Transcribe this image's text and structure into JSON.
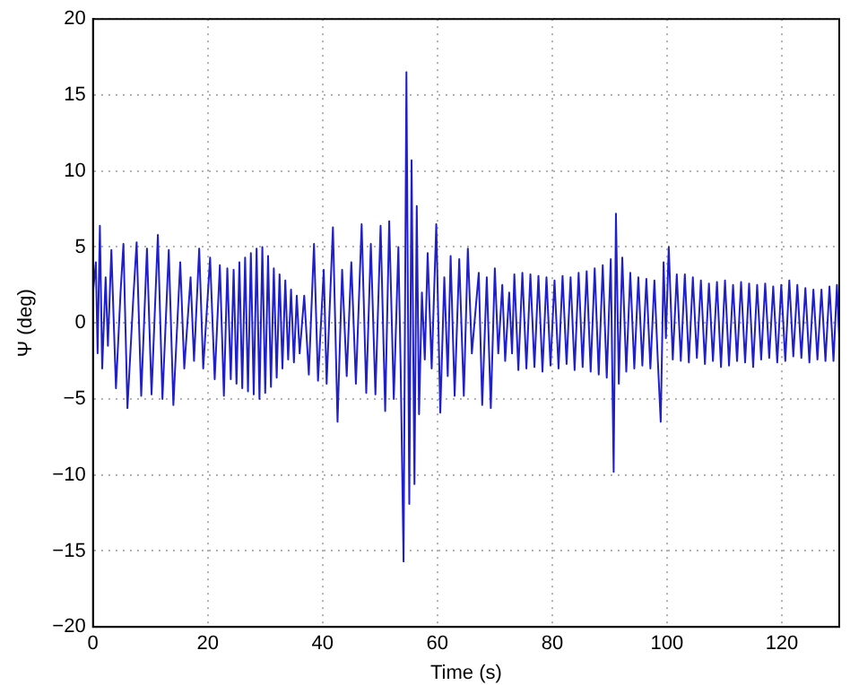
{
  "chart_data": {
    "type": "line",
    "xlabel": "Time (s)",
    "ylabel": "Ψ (deg)",
    "xlim": [
      0,
      130
    ],
    "xticks": [
      0,
      20,
      40,
      60,
      80,
      100,
      120
    ],
    "ylim": [
      -20,
      20
    ],
    "yticks": [
      -20,
      -15,
      -10,
      -5,
      0,
      5,
      10,
      15,
      20
    ],
    "grid": true,
    "legend": false,
    "marker": "none",
    "line_style": "solid",
    "series": [
      {
        "color": "#1f1fcc",
        "x": [
          0,
          0.5,
          0.8,
          1.2,
          1.6,
          2.2,
          2.6,
          3.2,
          4,
          4.8,
          5.3,
          6,
          7,
          7.6,
          8.4,
          9.4,
          10.2,
          11.3,
          12.1,
          13.2,
          14,
          15.2,
          15.9,
          17,
          17.6,
          18.5,
          19.2,
          20.4,
          21.2,
          22.1,
          22.8,
          23.4,
          24,
          24.5,
          25,
          25.5,
          26,
          26.5,
          27,
          27.5,
          28,
          28.5,
          29,
          29.5,
          30,
          30.5,
          31,
          31.5,
          32,
          32.5,
          33,
          33.5,
          34,
          34.5,
          35,
          35.5,
          36,
          36.8,
          37.6,
          38.5,
          39.2,
          40.2,
          40.7,
          41.8,
          42.6,
          43.4,
          44.2,
          45,
          45.8,
          46.8,
          47.6,
          48.4,
          49.2,
          50.1,
          50.9,
          51.6,
          52.4,
          53.2,
          53.6,
          54.1,
          54.6,
          55.1,
          55.5,
          56,
          56.4,
          56.8,
          57.3,
          57.8,
          58.3,
          59,
          59.8,
          60.5,
          61.2,
          61.8,
          62.3,
          63,
          63.8,
          64.6,
          65.3,
          66,
          67.2,
          67.8,
          68.6,
          69.3,
          70,
          70.6,
          71.3,
          71.8,
          72.5,
          73,
          73.4,
          74.1,
          74.8,
          75.5,
          76.2,
          76.9,
          77.6,
          78.3,
          79,
          79.7,
          80.4,
          81.1,
          81.8,
          82.5,
          83.2,
          83.9,
          84.6,
          85.3,
          86,
          86.7,
          87.4,
          88.1,
          88.8,
          89.5,
          90.2,
          90.7,
          91.1,
          91.6,
          92.2,
          92.9,
          93.6,
          94.3,
          95,
          95.7,
          96.4,
          97.1,
          97.8,
          98.4,
          98.9,
          99.4,
          99.8,
          100.3,
          101,
          101.7,
          102.4,
          103.1,
          103.8,
          104.5,
          105.2,
          105.9,
          106.6,
          107.3,
          108,
          108.7,
          109.4,
          110.1,
          110.8,
          111.5,
          112.2,
          112.9,
          113.6,
          114.3,
          115,
          115.7,
          116.4,
          117.1,
          117.8,
          118.5,
          119.2,
          119.9,
          120.6,
          121.3,
          122,
          122.7,
          123.4,
          124.1,
          124.8,
          125.5,
          126.2,
          126.9,
          127.6,
          128.3,
          129,
          129.6,
          130
        ],
        "values": [
          2,
          4,
          -2,
          6.4,
          -3,
          3,
          -1.5,
          4.8,
          -4.3,
          2,
          5.2,
          -5.6,
          1.5,
          5.3,
          -4.8,
          4.9,
          -4.7,
          5.8,
          -5,
          4.8,
          -5.4,
          4,
          -3,
          3,
          -2.5,
          4.9,
          -3,
          4.3,
          -3.7,
          3.8,
          -4.8,
          3.6,
          -3.7,
          3.5,
          -4,
          4,
          -4.3,
          4.3,
          -4.5,
          4.6,
          -4.7,
          4.9,
          -5,
          5,
          -4.6,
          4.4,
          -4.2,
          3.6,
          -3.6,
          3.2,
          -3,
          2.8,
          -2.4,
          2.2,
          -2.6,
          1.8,
          -2,
          1.8,
          -3.4,
          5.2,
          -3.8,
          3.5,
          -4,
          6.3,
          -6.5,
          3.5,
          -3.5,
          4,
          -4,
          6.5,
          -4.6,
          5.2,
          -4.7,
          6.4,
          -5.8,
          6.7,
          -5,
          5,
          -3,
          -15.7,
          16.5,
          -11.9,
          10.7,
          -10.6,
          7.7,
          -6,
          2,
          -2.4,
          4.6,
          -3,
          6.5,
          -5.9,
          3,
          -3.5,
          4.4,
          -4.8,
          4.2,
          -4.8,
          4.9,
          -2,
          3.3,
          -5.4,
          3,
          -5.6,
          3.6,
          -2,
          2.5,
          -2.5,
          2,
          -2,
          3.2,
          -3.1,
          3.3,
          -3,
          3.2,
          -2.9,
          3.1,
          -3.2,
          3,
          -2.8,
          2.8,
          -3,
          3.1,
          -2.7,
          3,
          -3.1,
          3.3,
          -2.9,
          3.4,
          -3.2,
          3.6,
          -3.4,
          3.8,
          -3.6,
          4.2,
          -9.8,
          7.2,
          -4,
          4.3,
          -3.2,
          3.3,
          -3,
          3,
          -2.8,
          2.9,
          -3,
          2.8,
          -2.5,
          -6.5,
          4,
          -1,
          5,
          -2.4,
          3.2,
          -2.5,
          3.2,
          -2.6,
          3,
          -2.3,
          2.8,
          -2.7,
          2.6,
          -2.5,
          2.7,
          -2.9,
          2.8,
          -2.8,
          2.5,
          -2.5,
          2.7,
          -2.6,
          2.6,
          -2.9,
          2.5,
          -2.4,
          2.6,
          -2.3,
          2.4,
          -2.6,
          2.5,
          -2.5,
          2.8,
          -2.2,
          2.5,
          -2.3,
          2.3,
          -2.6,
          2.2,
          -2.4,
          2.2,
          -2.5,
          2.4,
          -2.5,
          2.5,
          -1
        ]
      }
    ]
  }
}
